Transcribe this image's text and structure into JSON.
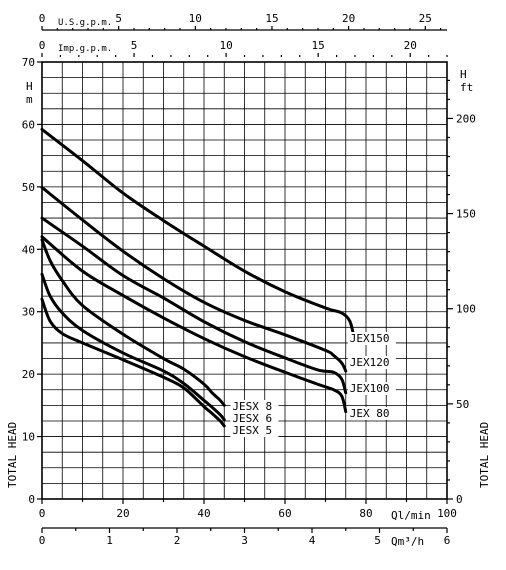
{
  "chart_data": {
    "type": "line",
    "title": "",
    "xlabel": "Ql/min",
    "xlabel_alt": "Qm³/h",
    "ylabel": "TOTAL HEAD",
    "ylabel_right": "TOTAL HEAD",
    "y_unit_left": [
      "H",
      "m"
    ],
    "y_unit_right": [
      "H",
      "ft"
    ],
    "top_axis_1_label": "U.S.g.p.m.",
    "top_axis_2_label": "Imp.g.p.m.",
    "xlim": [
      0,
      100
    ],
    "ylim": [
      0,
      70
    ],
    "grid": true,
    "x_ticks": [
      "0",
      "20",
      "40",
      "60",
      "80",
      "100"
    ],
    "y_ticks": [
      "0",
      "10",
      "20",
      "30",
      "40",
      "50",
      "60",
      "70"
    ],
    "x_ticks_m3h": [
      "0",
      "1",
      "2",
      "3",
      "4",
      "5",
      "6"
    ],
    "y_ticks_ft": [
      "0",
      "50",
      "100",
      "150",
      "200"
    ],
    "top_ticks_us": [
      "0",
      "5",
      "10",
      "15",
      "20",
      "25"
    ],
    "top_ticks_imp": [
      "0",
      "5",
      "10",
      "15",
      "20"
    ],
    "series": [
      {
        "name": "JEX150",
        "x": [
          0,
          10,
          20,
          30,
          40,
          50,
          60,
          70,
          74,
          76,
          77
        ],
        "y": [
          59.2,
          54.2,
          49,
          44.6,
          40.5,
          36.5,
          33.2,
          30.6,
          29.8,
          28.5,
          26
        ]
      },
      {
        "name": "JEX120",
        "x": [
          0,
          10,
          20,
          30,
          40,
          50,
          60,
          70,
          72,
          74,
          75
        ],
        "y": [
          49.9,
          44.7,
          39.7,
          35.3,
          31.5,
          28.6,
          26.3,
          23.8,
          23,
          21.8,
          20.5
        ]
      },
      {
        "name": "JEX100",
        "x": [
          0,
          10,
          20,
          30,
          40,
          50,
          60,
          68,
          72,
          74,
          75
        ],
        "y": [
          45,
          40.5,
          35.8,
          32.2,
          28.4,
          25.2,
          22.6,
          20.7,
          20.3,
          19.2,
          17
        ]
      },
      {
        "name": "JEX 80",
        "x": [
          0,
          10,
          20,
          30,
          40,
          50,
          60,
          68,
          72,
          74,
          75
        ],
        "y": [
          42,
          36.5,
          32.6,
          29,
          25.7,
          22.8,
          20.3,
          18.4,
          17.5,
          16.5,
          14
        ]
      },
      {
        "name": "JESX 8",
        "x": [
          0,
          2,
          5,
          10,
          20,
          30,
          35,
          40,
          42,
          44,
          45
        ],
        "y": [
          41.5,
          38.2,
          35,
          31,
          26.4,
          22.5,
          20.8,
          18.4,
          17,
          15.8,
          15
        ]
      },
      {
        "name": "JESX 6",
        "x": [
          0,
          2,
          5,
          10,
          20,
          30,
          35,
          40,
          42,
          44,
          45
        ],
        "y": [
          36,
          32.5,
          29.8,
          27,
          23.4,
          20.5,
          18.5,
          15.8,
          14.7,
          13.5,
          12.7
        ]
      },
      {
        "name": "JESX 5",
        "x": [
          0,
          2,
          5,
          10,
          20,
          30,
          35,
          40,
          42,
          44,
          45
        ],
        "y": [
          32,
          28.5,
          26.5,
          25,
          22.3,
          19.5,
          17.8,
          14.8,
          13.7,
          12.5,
          11.7
        ]
      }
    ]
  }
}
